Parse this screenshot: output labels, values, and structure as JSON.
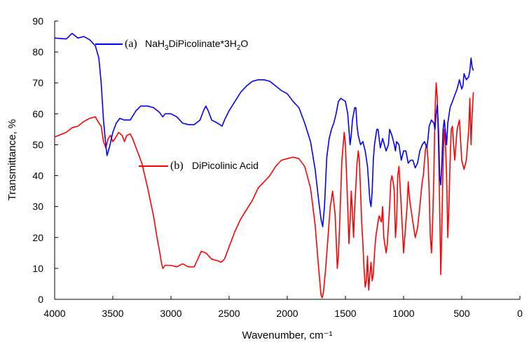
{
  "chart_data": {
    "type": "line",
    "xlabel": "Wavenumber, cm⁻¹",
    "ylabel": "Transmittance, %",
    "xlim": [
      4000,
      0
    ],
    "ylim": [
      0,
      90
    ],
    "x_ticks": [
      "4000",
      "3500",
      "3000",
      "2500",
      "2000",
      "1500",
      "1000",
      "500",
      "0"
    ],
    "y_ticks": [
      "0",
      "10",
      "20",
      "30",
      "40",
      "50",
      "60",
      "70",
      "80",
      "90"
    ],
    "grid": false,
    "legend": [
      {
        "tag": "(a)",
        "name_parts": [
          "NaH",
          "3",
          "DiPicolinate*3H",
          "2",
          "O"
        ],
        "color": "#0000ff"
      },
      {
        "tag": "(b)",
        "name": "DiPicolinic Acid",
        "color": "#ff0000"
      }
    ],
    "series": [
      {
        "name": "(a) NaH3DiPicolinate*3H2O",
        "color": "#0000ff",
        "points": [
          [
            4000,
            84.5
          ],
          [
            3900,
            84.2
          ],
          [
            3850,
            86
          ],
          [
            3800,
            84.5
          ],
          [
            3750,
            85
          ],
          [
            3700,
            84
          ],
          [
            3650,
            82
          ],
          [
            3620,
            78
          ],
          [
            3600,
            70
          ],
          [
            3580,
            58
          ],
          [
            3560,
            50
          ],
          [
            3550,
            46.5
          ],
          [
            3530,
            49
          ],
          [
            3500,
            54
          ],
          [
            3470,
            57
          ],
          [
            3440,
            58.5
          ],
          [
            3400,
            58
          ],
          [
            3350,
            58
          ],
          [
            3300,
            61
          ],
          [
            3260,
            62.5
          ],
          [
            3200,
            62.5
          ],
          [
            3150,
            62
          ],
          [
            3100,
            60.5
          ],
          [
            3070,
            59
          ],
          [
            3050,
            60
          ],
          [
            3000,
            60
          ],
          [
            2950,
            59
          ],
          [
            2900,
            57
          ],
          [
            2850,
            56.5
          ],
          [
            2800,
            56.5
          ],
          [
            2750,
            58
          ],
          [
            2720,
            61
          ],
          [
            2700,
            62.5
          ],
          [
            2680,
            61
          ],
          [
            2650,
            58
          ],
          [
            2600,
            57
          ],
          [
            2560,
            56
          ],
          [
            2540,
            58
          ],
          [
            2500,
            61
          ],
          [
            2450,
            64
          ],
          [
            2400,
            67
          ],
          [
            2350,
            69
          ],
          [
            2300,
            70.5
          ],
          [
            2250,
            71
          ],
          [
            2200,
            71
          ],
          [
            2150,
            70.5
          ],
          [
            2100,
            69
          ],
          [
            2050,
            67.5
          ],
          [
            2000,
            66.5
          ],
          [
            1950,
            64
          ],
          [
            1900,
            62
          ],
          [
            1850,
            57
          ],
          [
            1800,
            51
          ],
          [
            1760,
            42
          ],
          [
            1730,
            32
          ],
          [
            1710,
            26
          ],
          [
            1695,
            23.5
          ],
          [
            1680,
            30
          ],
          [
            1660,
            46
          ],
          [
            1640,
            52
          ],
          [
            1620,
            55
          ],
          [
            1600,
            57
          ],
          [
            1580,
            60
          ],
          [
            1560,
            64
          ],
          [
            1540,
            65
          ],
          [
            1520,
            64.5
          ],
          [
            1500,
            64
          ],
          [
            1480,
            60
          ],
          [
            1470,
            55
          ],
          [
            1460,
            50
          ],
          [
            1450,
            53
          ],
          [
            1440,
            58
          ],
          [
            1420,
            62
          ],
          [
            1410,
            62
          ],
          [
            1400,
            56
          ],
          [
            1390,
            53
          ],
          [
            1370,
            50
          ],
          [
            1350,
            51
          ],
          [
            1330,
            48
          ],
          [
            1310,
            43
          ],
          [
            1290,
            32
          ],
          [
            1280,
            30
          ],
          [
            1270,
            35
          ],
          [
            1260,
            45
          ],
          [
            1250,
            50
          ],
          [
            1230,
            55
          ],
          [
            1220,
            55
          ],
          [
            1200,
            49
          ],
          [
            1180,
            52
          ],
          [
            1150,
            48
          ],
          [
            1130,
            50
          ],
          [
            1120,
            55
          ],
          [
            1100,
            53
          ],
          [
            1080,
            50
          ],
          [
            1070,
            48
          ],
          [
            1060,
            51
          ],
          [
            1040,
            50
          ],
          [
            1020,
            45
          ],
          [
            1000,
            48
          ],
          [
            980,
            48
          ],
          [
            960,
            44
          ],
          [
            940,
            45
          ],
          [
            920,
            45
          ],
          [
            900,
            42.5
          ],
          [
            880,
            44
          ],
          [
            860,
            48
          ],
          [
            840,
            50
          ],
          [
            820,
            51
          ],
          [
            800,
            49
          ],
          [
            790,
            52
          ],
          [
            780,
            56
          ],
          [
            760,
            58
          ],
          [
            740,
            57
          ],
          [
            730,
            55
          ],
          [
            720,
            60
          ],
          [
            710,
            63
          ],
          [
            700,
            55
          ],
          [
            690,
            40
          ],
          [
            680,
            37
          ],
          [
            670,
            45
          ],
          [
            660,
            55
          ],
          [
            650,
            58
          ],
          [
            640,
            54
          ],
          [
            630,
            50
          ],
          [
            620,
            57
          ],
          [
            600,
            62
          ],
          [
            580,
            64
          ],
          [
            560,
            66
          ],
          [
            540,
            68
          ],
          [
            520,
            71
          ],
          [
            500,
            68
          ],
          [
            490,
            69
          ],
          [
            480,
            73
          ],
          [
            460,
            71
          ],
          [
            440,
            72
          ],
          [
            430,
            74
          ],
          [
            420,
            78
          ],
          [
            410,
            75
          ],
          [
            400,
            74
          ]
        ]
      },
      {
        "name": "(b) DiPicolinic Acid",
        "color": "#ff0000",
        "points": [
          [
            4000,
            52.5
          ],
          [
            3900,
            54
          ],
          [
            3850,
            55.5
          ],
          [
            3800,
            56
          ],
          [
            3750,
            57.5
          ],
          [
            3700,
            58.5
          ],
          [
            3650,
            59
          ],
          [
            3620,
            57
          ],
          [
            3600,
            56
          ],
          [
            3580,
            51
          ],
          [
            3560,
            49
          ],
          [
            3540,
            52
          ],
          [
            3520,
            53
          ],
          [
            3500,
            51
          ],
          [
            3480,
            52
          ],
          [
            3450,
            54
          ],
          [
            3420,
            53
          ],
          [
            3400,
            51
          ],
          [
            3380,
            53
          ],
          [
            3350,
            53.5
          ],
          [
            3330,
            52
          ],
          [
            3300,
            49
          ],
          [
            3250,
            44
          ],
          [
            3200,
            36
          ],
          [
            3150,
            27
          ],
          [
            3120,
            20
          ],
          [
            3100,
            16
          ],
          [
            3080,
            11.5
          ],
          [
            3070,
            10
          ],
          [
            3050,
            11
          ],
          [
            3000,
            11
          ],
          [
            2950,
            10.5
          ],
          [
            2900,
            11.5
          ],
          [
            2850,
            10.5
          ],
          [
            2800,
            10.5
          ],
          [
            2770,
            13
          ],
          [
            2740,
            15.5
          ],
          [
            2700,
            15
          ],
          [
            2650,
            13
          ],
          [
            2600,
            12.5
          ],
          [
            2570,
            12
          ],
          [
            2540,
            13
          ],
          [
            2500,
            17
          ],
          [
            2450,
            22
          ],
          [
            2400,
            26
          ],
          [
            2350,
            29
          ],
          [
            2300,
            32
          ],
          [
            2250,
            36
          ],
          [
            2200,
            38
          ],
          [
            2150,
            40
          ],
          [
            2100,
            43
          ],
          [
            2050,
            45
          ],
          [
            2000,
            45.5
          ],
          [
            1950,
            46
          ],
          [
            1900,
            45.5
          ],
          [
            1850,
            43
          ],
          [
            1800,
            36
          ],
          [
            1760,
            24
          ],
          [
            1730,
            10
          ],
          [
            1710,
            1.5
          ],
          [
            1700,
            0.5
          ],
          [
            1690,
            2
          ],
          [
            1670,
            10
          ],
          [
            1650,
            20
          ],
          [
            1630,
            30
          ],
          [
            1610,
            35
          ],
          [
            1590,
            28
          ],
          [
            1580,
            20
          ],
          [
            1570,
            10
          ],
          [
            1560,
            14
          ],
          [
            1550,
            24
          ],
          [
            1540,
            35
          ],
          [
            1530,
            45
          ],
          [
            1510,
            54
          ],
          [
            1500,
            50
          ],
          [
            1480,
            30
          ],
          [
            1470,
            18
          ],
          [
            1460,
            25
          ],
          [
            1450,
            35
          ],
          [
            1440,
            28
          ],
          [
            1430,
            20
          ],
          [
            1420,
            30
          ],
          [
            1400,
            44
          ],
          [
            1390,
            48
          ],
          [
            1380,
            45
          ],
          [
            1370,
            35
          ],
          [
            1360,
            25
          ],
          [
            1350,
            18
          ],
          [
            1340,
            10
          ],
          [
            1330,
            4
          ],
          [
            1320,
            6
          ],
          [
            1310,
            14
          ],
          [
            1300,
            3
          ],
          [
            1290,
            8
          ],
          [
            1280,
            12
          ],
          [
            1270,
            6
          ],
          [
            1260,
            8
          ],
          [
            1250,
            15
          ],
          [
            1240,
            20
          ],
          [
            1220,
            25
          ],
          [
            1210,
            27
          ],
          [
            1190,
            25
          ],
          [
            1180,
            30
          ],
          [
            1170,
            20
          ],
          [
            1150,
            15
          ],
          [
            1140,
            18
          ],
          [
            1120,
            30
          ],
          [
            1110,
            38
          ],
          [
            1100,
            40
          ],
          [
            1090,
            38
          ],
          [
            1080,
            35
          ],
          [
            1070,
            20
          ],
          [
            1060,
            25
          ],
          [
            1050,
            40
          ],
          [
            1040,
            43
          ],
          [
            1020,
            30
          ],
          [
            1000,
            15
          ],
          [
            990,
            20
          ],
          [
            980,
            25
          ],
          [
            970,
            30
          ],
          [
            960,
            38
          ],
          [
            950,
            33
          ],
          [
            940,
            30
          ],
          [
            920,
            25
          ],
          [
            900,
            20
          ],
          [
            880,
            23
          ],
          [
            860,
            30
          ],
          [
            840,
            38
          ],
          [
            830,
            40
          ],
          [
            820,
            45
          ],
          [
            810,
            49
          ],
          [
            800,
            50
          ],
          [
            790,
            45
          ],
          [
            780,
            35
          ],
          [
            770,
            20
          ],
          [
            760,
            15
          ],
          [
            750,
            25
          ],
          [
            740,
            40
          ],
          [
            730,
            60
          ],
          [
            720,
            70
          ],
          [
            710,
            65
          ],
          [
            700,
            50
          ],
          [
            690,
            30
          ],
          [
            680,
            8
          ],
          [
            670,
            25
          ],
          [
            660,
            45
          ],
          [
            650,
            55
          ],
          [
            640,
            50
          ],
          [
            630,
            40
          ],
          [
            620,
            20
          ],
          [
            610,
            30
          ],
          [
            600,
            45
          ],
          [
            590,
            55
          ],
          [
            580,
            56
          ],
          [
            570,
            50
          ],
          [
            560,
            45
          ],
          [
            540,
            55
          ],
          [
            520,
            58
          ],
          [
            500,
            45
          ],
          [
            480,
            42
          ],
          [
            460,
            45
          ],
          [
            440,
            55
          ],
          [
            430,
            65
          ],
          [
            420,
            50
          ],
          [
            410,
            60
          ],
          [
            400,
            67
          ]
        ]
      }
    ]
  }
}
